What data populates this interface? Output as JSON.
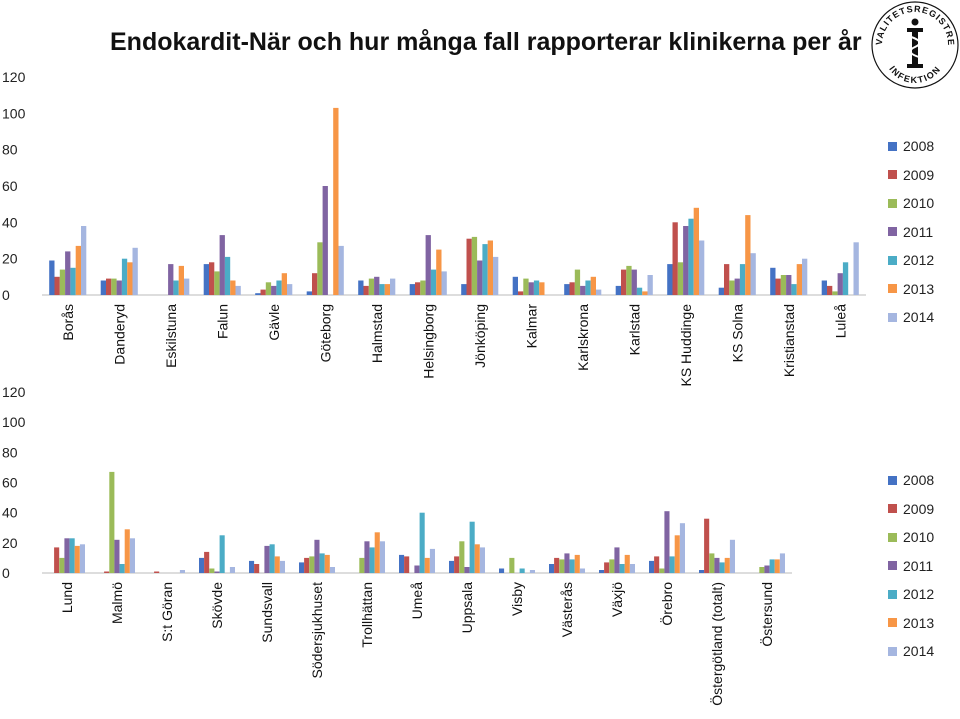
{
  "title": "Endokardit-När och hur många fall rapporterar klinikerna per  år",
  "logo": {
    "text_top": "KVALITETSREGISTRET",
    "text_bottom": "INFEKTION",
    "icon": "caduceus-icon"
  },
  "colors": [
    "#4472c4",
    "#c0504d",
    "#9bbb59",
    "#8064a2",
    "#4bacc6",
    "#f79646",
    "#a5b6e0"
  ],
  "chart_data": [
    {
      "type": "bar",
      "yticks": [
        "120",
        "100",
        "80",
        "60",
        "40",
        "20",
        "0"
      ],
      "ylim": [
        0,
        120
      ],
      "legend_position": "right",
      "categories": [
        "Borås",
        "Danderyd",
        "Eskilstuna",
        "Falun",
        "Gävle",
        "Göteborg",
        "Halmstad",
        "Helsingborg",
        "Jönköping",
        "Kalmar",
        "Karlskrona",
        "Karlstad",
        "KS Huddinge",
        "KS Solna",
        "Kristianstad",
        "Luleå"
      ],
      "series": [
        {
          "name": "2008",
          "values": [
            19,
            8,
            0,
            17,
            1,
            2,
            8,
            6,
            6,
            10,
            6,
            5,
            17,
            4,
            15,
            8
          ]
        },
        {
          "name": "2009",
          "values": [
            10,
            9,
            0,
            18,
            3,
            12,
            5,
            7,
            31,
            2,
            7,
            14,
            40,
            17,
            9,
            5
          ]
        },
        {
          "name": "2010",
          "values": [
            14,
            9,
            0,
            13,
            7,
            29,
            9,
            8,
            32,
            9,
            14,
            16,
            18,
            8,
            11,
            2
          ]
        },
        {
          "name": "2011",
          "values": [
            24,
            8,
            17,
            33,
            5,
            60,
            10,
            33,
            19,
            7,
            5,
            14,
            38,
            9,
            11,
            12
          ]
        },
        {
          "name": "2012",
          "values": [
            15,
            20,
            8,
            21,
            8,
            0,
            6,
            14,
            28,
            8,
            8,
            4,
            42,
            17,
            6,
            18
          ]
        },
        {
          "name": "2013",
          "values": [
            27,
            18,
            16,
            8,
            12,
            103,
            6,
            25,
            30,
            7,
            10,
            2,
            48,
            44,
            17,
            0
          ]
        },
        {
          "name": "2014",
          "values": [
            38,
            26,
            9,
            5,
            6,
            27,
            9,
            13,
            21,
            0,
            3,
            11,
            30,
            23,
            20,
            29
          ]
        }
      ]
    },
    {
      "type": "bar",
      "yticks": [
        "120",
        "100",
        "80",
        "60",
        "40",
        "20",
        "0"
      ],
      "ylim": [
        0,
        120
      ],
      "legend_position": "right",
      "categories": [
        "Lund",
        "Malmö",
        "S:t Göran",
        "Skövde",
        "Sundsvall",
        "Södersjukhuset",
        "Trollhättan",
        "Umeå",
        "Uppsala",
        "Visby",
        "Västerås",
        "Växjö",
        "Örebro",
        "Östergötland (totalt)",
        "Östersund"
      ],
      "series": [
        {
          "name": "2008",
          "values": [
            0,
            0,
            0,
            10,
            8,
            7,
            0,
            12,
            8,
            3,
            6,
            2,
            8,
            2,
            0
          ]
        },
        {
          "name": "2009",
          "values": [
            17,
            1,
            1,
            14,
            6,
            10,
            0,
            11,
            11,
            0,
            10,
            7,
            11,
            36,
            0
          ]
        },
        {
          "name": "2010",
          "values": [
            10,
            67,
            0,
            3,
            0,
            11,
            10,
            0,
            21,
            10,
            9,
            9,
            3,
            13,
            4
          ]
        },
        {
          "name": "2011",
          "values": [
            23,
            22,
            0,
            1,
            18,
            22,
            21,
            5,
            4,
            0,
            13,
            17,
            41,
            10,
            5
          ]
        },
        {
          "name": "2012",
          "values": [
            23,
            6,
            0,
            25,
            19,
            13,
            17,
            40,
            34,
            3,
            9,
            6,
            11,
            7,
            9
          ]
        },
        {
          "name": "2013",
          "values": [
            18,
            29,
            0,
            0,
            11,
            12,
            27,
            10,
            19,
            0,
            12,
            12,
            25,
            10,
            9
          ]
        },
        {
          "name": "2014",
          "values": [
            19,
            23,
            2,
            4,
            8,
            4,
            21,
            16,
            17,
            2,
            3,
            6,
            33,
            22,
            13
          ]
        }
      ]
    }
  ]
}
